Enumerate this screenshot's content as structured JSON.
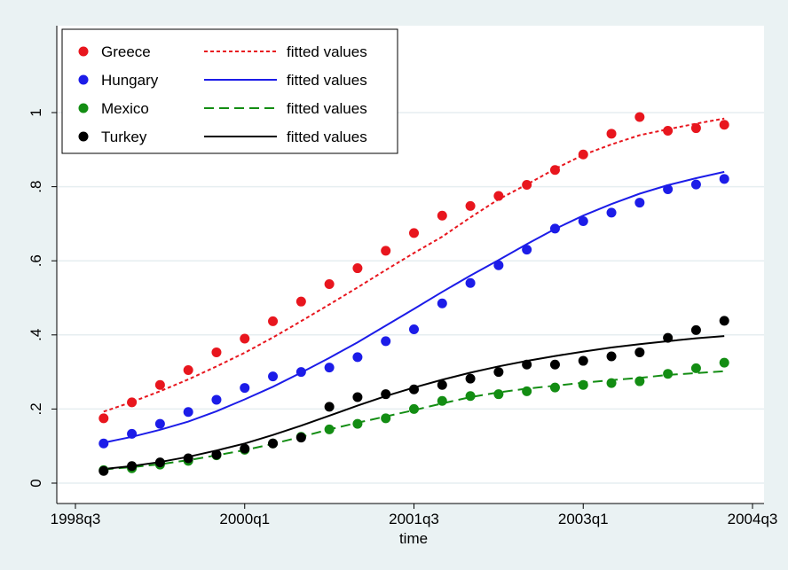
{
  "chart_data": {
    "type": "scatter",
    "title": "",
    "xlabel": "time",
    "ylabel": "",
    "xlim": [
      "1998q3",
      "2004q3"
    ],
    "ylim": [
      0,
      1.1
    ],
    "x_ticks": [
      "1998q3",
      "2000q1",
      "2001q3",
      "2003q1",
      "2004q3"
    ],
    "y_ticks": [
      {
        "v": 0,
        "label": "0"
      },
      {
        "v": 0.2,
        "label": ".2"
      },
      {
        "v": 0.4,
        "label": ".4"
      },
      {
        "v": 0.6,
        "label": ".6"
      },
      {
        "v": 0.8,
        "label": ".8"
      },
      {
        "v": 1,
        "label": "1"
      }
    ],
    "grid": true,
    "legend_position": "top-left",
    "x": [
      "1998q4",
      "1999q1",
      "1999q2",
      "1999q3",
      "1999q4",
      "2000q1",
      "2000q2",
      "2000q3",
      "2000q4",
      "2001q1",
      "2001q2",
      "2001q3",
      "2001q4",
      "2002q1",
      "2002q2",
      "2002q3",
      "2002q4",
      "2003q1",
      "2003q2",
      "2003q3",
      "2003q4",
      "2004q1",
      "2004q2"
    ],
    "series": [
      {
        "name": "Greece",
        "color": "#e8161e",
        "values": [
          0.175,
          0.218,
          0.265,
          0.305,
          0.353,
          0.39,
          0.437,
          0.49,
          0.537,
          0.58,
          0.627,
          0.675,
          0.722,
          0.748,
          0.775,
          0.805,
          0.845,
          0.887,
          0.943,
          0.988,
          0.951,
          0.958,
          0.967
        ],
        "fit_label": "fitted values",
        "fit_style": "dotted",
        "fitted": [
          0.193,
          0.219,
          0.248,
          0.28,
          0.315,
          0.352,
          0.393,
          0.437,
          0.482,
          0.528,
          0.575,
          0.621,
          0.665,
          0.717,
          0.766,
          0.806,
          0.848,
          0.886,
          0.914,
          0.939,
          0.955,
          0.97,
          0.984
        ]
      },
      {
        "name": "Hungary",
        "color": "#1c1ce8",
        "values": [
          0.107,
          0.133,
          0.16,
          0.192,
          0.225,
          0.257,
          0.288,
          0.3,
          0.312,
          0.34,
          0.383,
          0.415,
          0.485,
          0.54,
          0.588,
          0.63,
          0.687,
          0.707,
          0.73,
          0.757,
          0.793,
          0.806,
          0.821
        ],
        "fit_label": "fitted values",
        "fit_style": "solid",
        "fitted": [
          0.109,
          0.125,
          0.144,
          0.166,
          0.194,
          0.226,
          0.26,
          0.298,
          0.338,
          0.38,
          0.425,
          0.47,
          0.516,
          0.56,
          0.602,
          0.645,
          0.686,
          0.722,
          0.753,
          0.781,
          0.804,
          0.823,
          0.84
        ]
      },
      {
        "name": "Mexico",
        "color": "#138d13",
        "values": [
          0.035,
          0.04,
          0.05,
          0.06,
          0.075,
          0.09,
          0.107,
          0.125,
          0.145,
          0.16,
          0.175,
          0.2,
          0.222,
          0.235,
          0.24,
          0.248,
          0.258,
          0.265,
          0.27,
          0.275,
          0.295,
          0.31,
          0.325
        ],
        "fit_label": "fitted values",
        "fit_style": "dashed",
        "fitted": [
          0.037,
          0.043,
          0.051,
          0.062,
          0.075,
          0.089,
          0.106,
          0.125,
          0.145,
          0.163,
          0.18,
          0.197,
          0.215,
          0.232,
          0.245,
          0.255,
          0.263,
          0.271,
          0.278,
          0.284,
          0.292,
          0.297,
          0.302
        ]
      },
      {
        "name": "Turkey",
        "color": "#000000",
        "values": [
          0.033,
          0.046,
          0.056,
          0.067,
          0.077,
          0.093,
          0.107,
          0.123,
          0.206,
          0.232,
          0.24,
          0.253,
          0.265,
          0.282,
          0.3,
          0.32,
          0.32,
          0.33,
          0.342,
          0.353,
          0.392,
          0.413,
          0.438
        ],
        "fit_label": "fitted values",
        "fit_style": "solid",
        "fitted": [
          0.038,
          0.046,
          0.057,
          0.071,
          0.088,
          0.107,
          0.13,
          0.155,
          0.182,
          0.209,
          0.235,
          0.258,
          0.279,
          0.298,
          0.315,
          0.33,
          0.343,
          0.355,
          0.366,
          0.375,
          0.383,
          0.391,
          0.397
        ]
      }
    ]
  }
}
